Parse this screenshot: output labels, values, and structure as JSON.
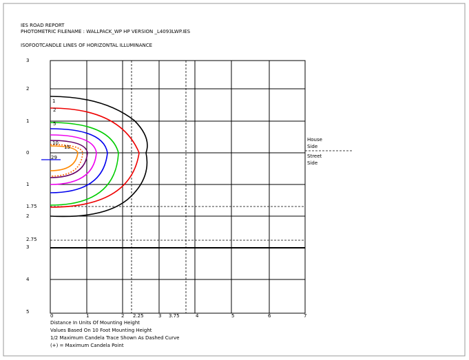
{
  "header": {
    "title": "IES ROAD REPORT",
    "filename": "PHOTOMETRIC FILENAME : WALLPACK_WP HP VERSION _L4093LWP.IES",
    "subtitle": "ISOFOOTCANDLE LINES OF HORIZONTAL ILLUMINANCE"
  },
  "y_labels": [
    "3",
    "2",
    "1",
    "0",
    "1",
    "1.75",
    "2",
    "2.75",
    "3",
    "4",
    "5"
  ],
  "x_labels": [
    "0",
    "1",
    "2",
    "2.25",
    "3",
    "3.75",
    "4",
    "5",
    "6",
    "7"
  ],
  "contour_labels": [
    "1",
    "2",
    "5",
    "10",
    "15",
    "29"
  ],
  "side_labels": {
    "house": "House",
    "house_side": "Side",
    "street": "Street",
    "street_side": "Side"
  },
  "notes": [
    "Distance In Units Of Mounting Height",
    "Values Based On 10 Foot Mounting Height",
    "1/2 Maximum Candela Trace Shown As Dashed Curve",
    "(+) = Maximum Candela Point"
  ]
}
